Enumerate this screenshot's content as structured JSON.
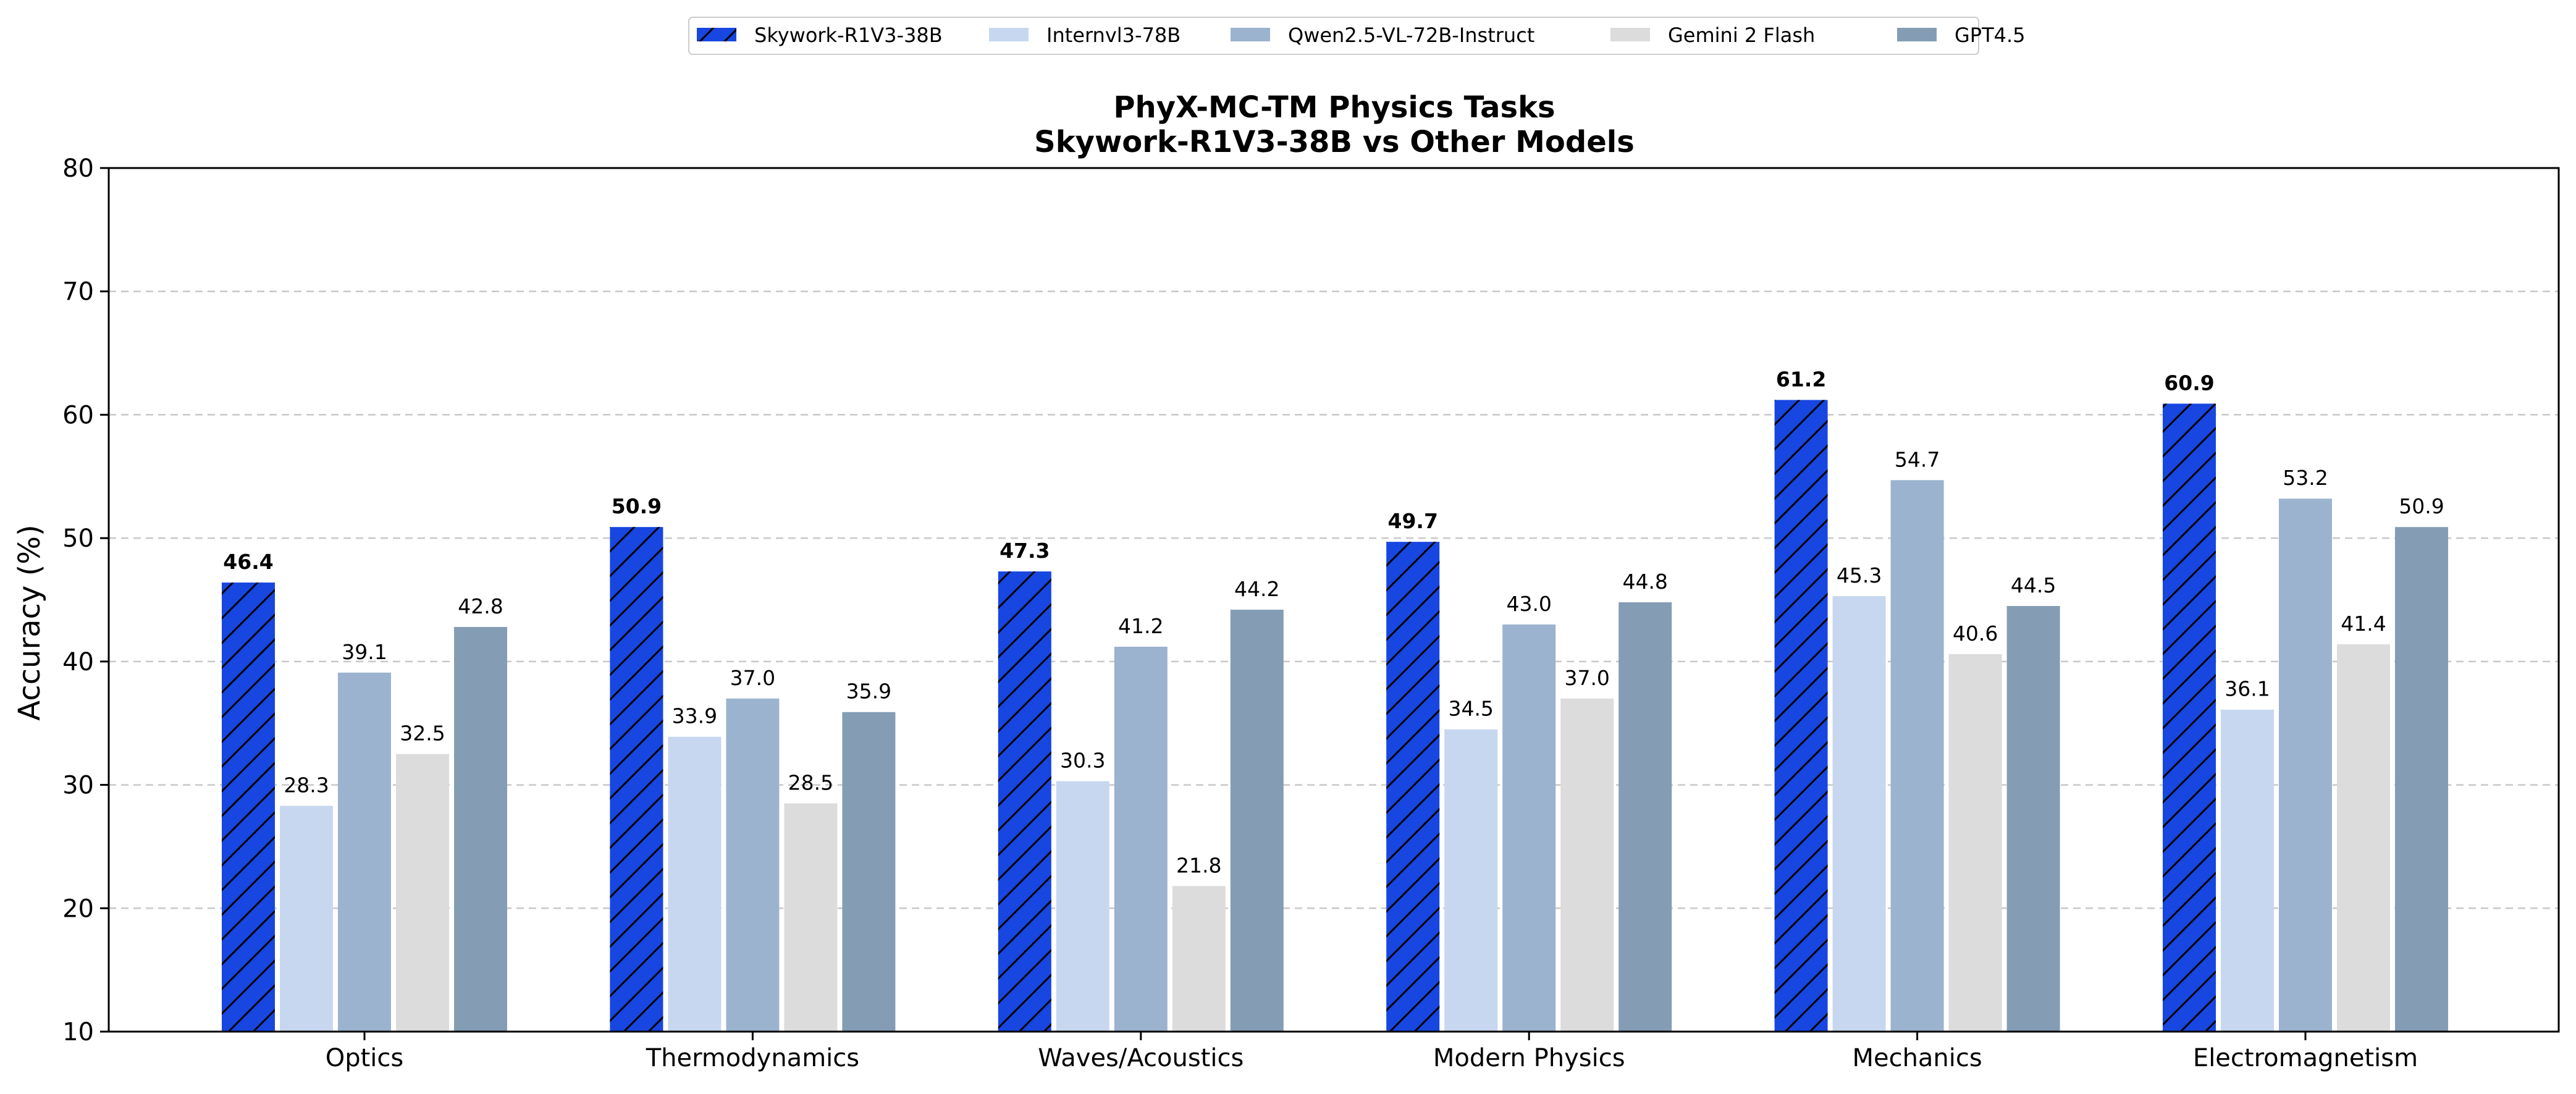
{
  "chart_data": {
    "type": "bar",
    "title": "PhyX-MC-TM Physics Tasks",
    "subtitle": "Skywork-R1V3-38B vs Other Models",
    "xlabel": "",
    "ylabel": "Accuracy (%)",
    "ylim": [
      10,
      80
    ],
    "yticks": [
      "10",
      "20",
      "30",
      "40",
      "50",
      "60",
      "70",
      "80"
    ],
    "grid": "horizontal dashed",
    "legend_position": "top-center",
    "categories": [
      "Optics",
      "Thermodynamics",
      "Waves/Acoustics",
      "Modern Physics",
      "Mechanics",
      "Electromagnetism"
    ],
    "series": [
      {
        "name": "Skywork-R1V3-38B",
        "color": "#1746e0",
        "hatch": true,
        "bold_labels": true,
        "values": [
          46.4,
          50.9,
          47.3,
          49.7,
          61.2,
          60.9
        ],
        "labels": [
          "46.4",
          "50.9",
          "47.3",
          "49.7",
          "61.2",
          "60.9"
        ]
      },
      {
        "name": "Internvl3-78B",
        "color": "#c7d7ef",
        "hatch": false,
        "bold_labels": false,
        "values": [
          28.3,
          33.9,
          30.3,
          34.5,
          45.3,
          36.1
        ],
        "labels": [
          "28.3",
          "33.9",
          "30.3",
          "34.5",
          "45.3",
          "36.1"
        ]
      },
      {
        "name": "Qwen2.5-VL-72B-Instruct",
        "color": "#9bb3cf",
        "hatch": false,
        "bold_labels": false,
        "values": [
          39.1,
          37.0,
          41.2,
          43.0,
          54.7,
          53.2
        ],
        "labels": [
          "39.1",
          "37.0",
          "41.2",
          "43.0",
          "54.7",
          "53.2"
        ]
      },
      {
        "name": "Gemini 2 Flash",
        "color": "#dcdcdc",
        "hatch": false,
        "bold_labels": false,
        "values": [
          32.5,
          28.5,
          21.8,
          37.0,
          40.6,
          41.4
        ],
        "labels": [
          "32.5",
          "28.5",
          "21.8",
          "37.0",
          "40.6",
          "41.4"
        ]
      },
      {
        "name": "GPT4.5",
        "color": "#849db5",
        "hatch": false,
        "bold_labels": false,
        "values": [
          42.8,
          35.9,
          44.2,
          44.8,
          44.5,
          50.9
        ],
        "labels": [
          "42.8",
          "35.9",
          "44.2",
          "44.8",
          "44.5",
          "50.9"
        ]
      }
    ]
  }
}
